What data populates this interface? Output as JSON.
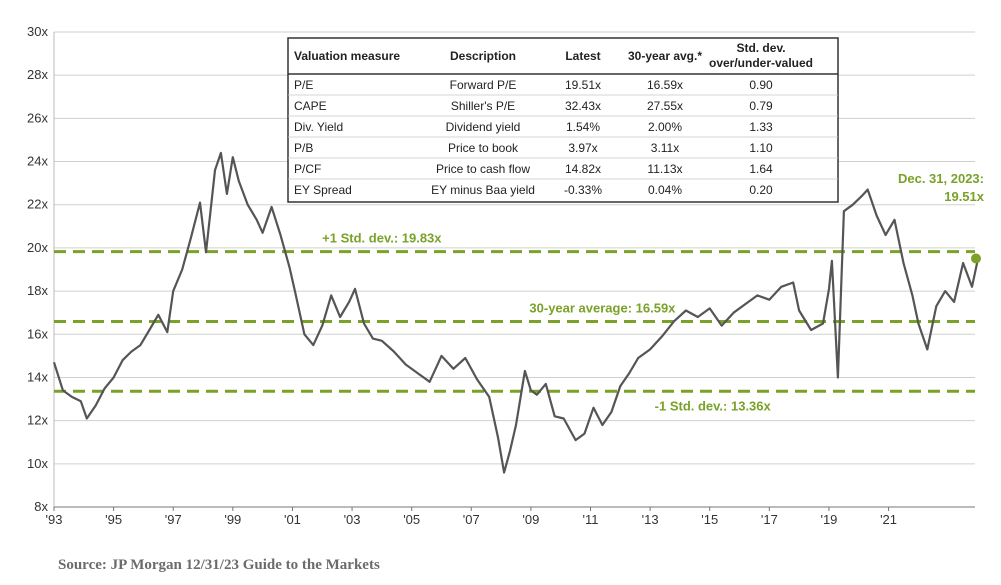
{
  "source": "Source: JP Morgan 12/31/23 Guide to the Markets",
  "colors": {
    "line": "#555555",
    "accent": "#7aa128",
    "grid": "#d0d0d0"
  },
  "chart_data": {
    "type": "line",
    "title": "",
    "xlabel": "",
    "ylabel": "",
    "xlim": [
      1993,
      2023.9
    ],
    "ylim": [
      8,
      30
    ],
    "y_ticks": [
      "8x",
      "10x",
      "12x",
      "14x",
      "16x",
      "18x",
      "20x",
      "22x",
      "24x",
      "26x",
      "28x",
      "30x"
    ],
    "x_ticks": [
      "'93",
      "'95",
      "'97",
      "'99",
      "'01",
      "'03",
      "'05",
      "'07",
      "'09",
      "'11",
      "'13",
      "'15",
      "'17",
      "'19",
      "'21"
    ],
    "grid": "horizontal",
    "series": [
      {
        "x": [
          1993.0,
          1993.3,
          1993.6,
          1993.9,
          1994.1,
          1994.4,
          1994.7,
          1995.0,
          1995.3,
          1995.6,
          1995.9,
          1996.2,
          1996.5,
          1996.8,
          1997.0,
          1997.3,
          1997.6,
          1997.9,
          1998.1,
          1998.4,
          1998.6,
          1998.8,
          1999.0,
          1999.2,
          1999.5,
          1999.8,
          2000.0,
          2000.3,
          2000.6,
          2000.9,
          2001.1,
          2001.4,
          2001.7,
          2002.0,
          2002.3,
          2002.6,
          2002.9,
          2003.1,
          2003.4,
          2003.7,
          2004.0,
          2004.4,
          2004.8,
          2005.2,
          2005.6,
          2006.0,
          2006.4,
          2006.8,
          2007.2,
          2007.6,
          2007.9,
          2008.1,
          2008.3,
          2008.5,
          2008.8,
          2009.0,
          2009.2,
          2009.5,
          2009.8,
          2010.1,
          2010.5,
          2010.8,
          2011.1,
          2011.4,
          2011.7,
          2012.0,
          2012.3,
          2012.6,
          2013.0,
          2013.4,
          2013.8,
          2014.2,
          2014.6,
          2015.0,
          2015.4,
          2015.8,
          2016.2,
          2016.6,
          2017.0,
          2017.4,
          2017.8,
          2018.0,
          2018.4,
          2018.8,
          2019.0,
          2019.1,
          2019.3,
          2019.5,
          2019.8,
          2020.1,
          2020.3,
          2020.6,
          2020.9,
          2021.2,
          2021.5,
          2021.8,
          2022.0,
          2022.3,
          2022.6,
          2022.9,
          2023.2,
          2023.5,
          2023.8,
          2024.0
        ],
        "values": [
          14.7,
          13.4,
          13.1,
          12.9,
          12.1,
          12.7,
          13.5,
          14.0,
          14.8,
          15.2,
          15.5,
          16.2,
          16.9,
          16.1,
          18.0,
          19.0,
          20.5,
          22.1,
          19.8,
          23.6,
          24.4,
          22.5,
          24.2,
          23.1,
          22.0,
          21.3,
          20.7,
          21.9,
          20.6,
          19.1,
          17.9,
          16.0,
          15.5,
          16.4,
          17.8,
          16.8,
          17.5,
          18.1,
          16.5,
          15.8,
          15.7,
          15.2,
          14.6,
          14.2,
          13.8,
          15.0,
          14.4,
          14.9,
          13.9,
          13.1,
          11.2,
          9.6,
          10.6,
          11.8,
          14.3,
          13.4,
          13.2,
          13.7,
          12.2,
          12.1,
          11.1,
          11.4,
          12.6,
          11.8,
          12.4,
          13.6,
          14.2,
          14.9,
          15.3,
          15.9,
          16.6,
          17.1,
          16.8,
          17.2,
          16.4,
          17.0,
          17.4,
          17.8,
          17.6,
          18.2,
          18.4,
          17.1,
          16.2,
          16.5,
          18.1,
          19.4,
          14.0,
          21.7,
          22.0,
          22.4,
          22.7,
          21.5,
          20.6,
          21.3,
          19.3,
          17.8,
          16.5,
          15.3,
          17.3,
          18.0,
          17.5,
          19.3,
          18.2,
          19.5
        ]
      }
    ],
    "reference_lines": [
      {
        "value": 19.83,
        "label": "+1 Std. dev.: 19.83x"
      },
      {
        "value": 16.59,
        "label": "30-year average: 16.59x"
      },
      {
        "value": 13.36,
        "label": "-1 Std. dev.: 13.36x"
      }
    ],
    "endpoint": {
      "x": 2024.0,
      "value": 19.51,
      "label_line1": "Dec. 31, 2023:",
      "label_line2": "19.51x"
    },
    "table": {
      "headers": [
        "Valuation measure",
        "Description",
        "Latest",
        "30-year avg.*",
        "Std. dev.",
        "over/under-valued"
      ],
      "rows": [
        [
          "P/E",
          "Forward P/E",
          "19.51x",
          "16.59x",
          "0.90"
        ],
        [
          "CAPE",
          "Shiller's P/E",
          "32.43x",
          "27.55x",
          "0.79"
        ],
        [
          "Div. Yield",
          "Dividend yield",
          "1.54%",
          "2.00%",
          "1.33"
        ],
        [
          "P/B",
          "Price to book",
          "3.97x",
          "3.11x",
          "1.10"
        ],
        [
          "P/CF",
          "Price to cash flow",
          "14.82x",
          "11.13x",
          "1.64"
        ],
        [
          "EY Spread",
          "EY minus Baa yield",
          "-0.33%",
          "0.04%",
          "0.20"
        ]
      ]
    }
  }
}
